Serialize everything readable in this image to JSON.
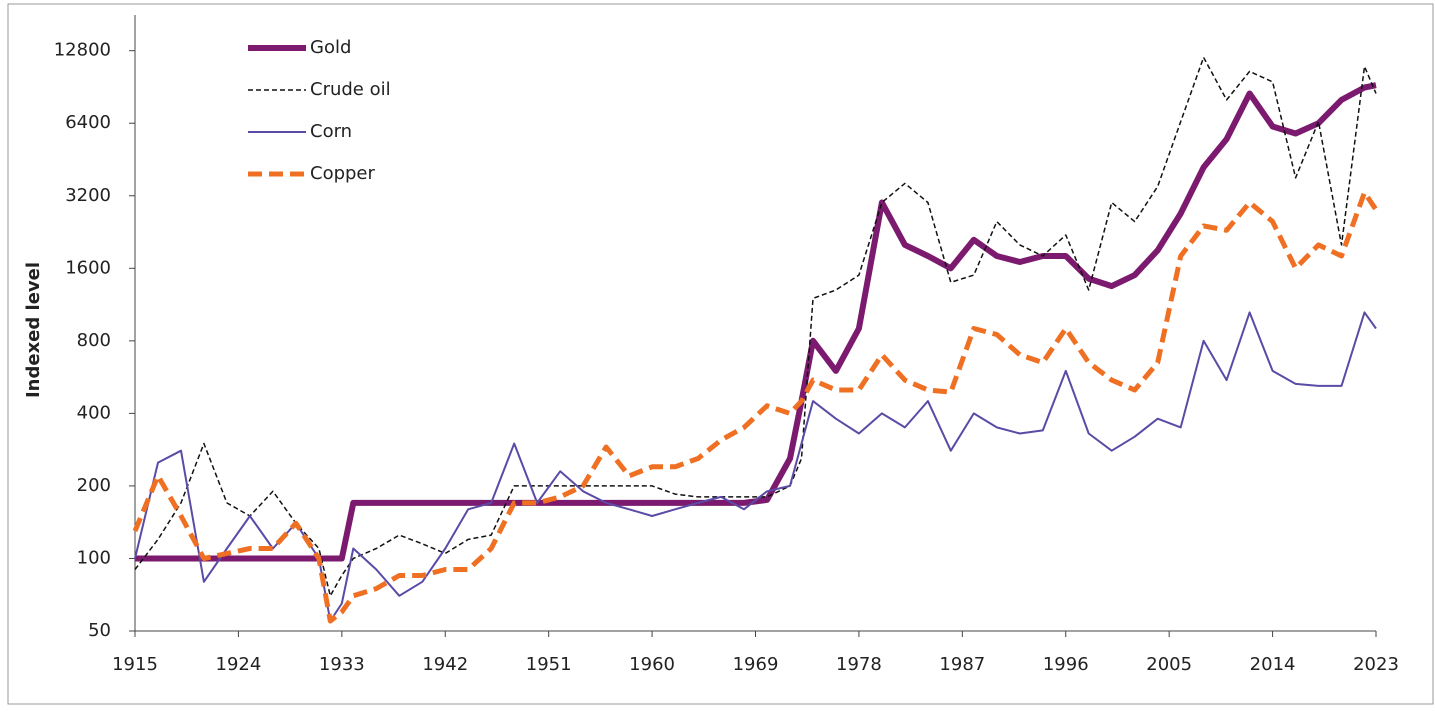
{
  "chart_data": {
    "type": "line",
    "y_label": "Indexed level",
    "log_scale": true,
    "xlim": [
      1915,
      2023
    ],
    "xticks": [
      1915,
      1924,
      1933,
      1942,
      1951,
      1960,
      1969,
      1978,
      1987,
      1996,
      2005,
      2014,
      2023
    ],
    "ylim": [
      50,
      18000
    ],
    "yticks": [
      50,
      100,
      200,
      400,
      800,
      1600,
      3200,
      6400,
      12800
    ],
    "legend": "top-left",
    "x": [
      1915,
      1917,
      1919,
      1921,
      1923,
      1925,
      1927,
      1929,
      1931,
      1932,
      1933,
      1934,
      1936,
      1938,
      1940,
      1942,
      1944,
      1946,
      1948,
      1950,
      1952,
      1954,
      1956,
      1958,
      1960,
      1962,
      1964,
      1966,
      1968,
      1970,
      1972,
      1973,
      1974,
      1976,
      1978,
      1980,
      1982,
      1984,
      1986,
      1988,
      1990,
      1992,
      1994,
      1996,
      1998,
      2000,
      2002,
      2004,
      2006,
      2008,
      2010,
      2012,
      2014,
      2016,
      2018,
      2020,
      2022,
      2023
    ],
    "series": [
      {
        "name": "Gold",
        "color": "#7b1a6e",
        "width": 6,
        "dash": false,
        "values": [
          100,
          100,
          100,
          100,
          100,
          100,
          100,
          100,
          100,
          100,
          100,
          170,
          170,
          170,
          170,
          170,
          170,
          170,
          170,
          170,
          170,
          170,
          170,
          170,
          170,
          170,
          170,
          170,
          170,
          175,
          260,
          450,
          800,
          600,
          900,
          3000,
          2000,
          1800,
          1600,
          2100,
          1800,
          1700,
          1800,
          1800,
          1450,
          1350,
          1500,
          1900,
          2700,
          4200,
          5500,
          8500,
          6200,
          5800,
          6400,
          8000,
          9000,
          9200
        ]
      },
      {
        "name": "Crude oil",
        "color": "#111111",
        "width": 1.5,
        "dash": true,
        "values": [
          90,
          120,
          170,
          300,
          170,
          150,
          190,
          140,
          110,
          70,
          85,
          100,
          110,
          125,
          115,
          105,
          120,
          125,
          200,
          200,
          200,
          200,
          200,
          200,
          200,
          185,
          180,
          180,
          180,
          180,
          200,
          260,
          1200,
          1300,
          1500,
          3000,
          3600,
          3000,
          1400,
          1500,
          2500,
          2000,
          1800,
          2200,
          1300,
          3000,
          2500,
          3500,
          6500,
          12000,
          8000,
          10500,
          9500,
          3800,
          6500,
          2000,
          11000,
          8500
        ]
      },
      {
        "name": "Corn",
        "color": "#5b4aa6",
        "width": 2,
        "dash": false,
        "values": [
          100,
          250,
          280,
          80,
          110,
          150,
          110,
          140,
          100,
          55,
          65,
          110,
          90,
          70,
          80,
          110,
          160,
          170,
          300,
          170,
          230,
          190,
          170,
          160,
          150,
          160,
          170,
          180,
          160,
          190,
          200,
          300,
          450,
          380,
          330,
          400,
          350,
          450,
          280,
          400,
          350,
          330,
          340,
          600,
          330,
          280,
          320,
          380,
          350,
          800,
          550,
          1050,
          600,
          530,
          520,
          520,
          1050,
          900
        ]
      },
      {
        "name": "Copper",
        "color": "#f07023",
        "width": 5,
        "dash": true,
        "values": [
          130,
          220,
          150,
          100,
          105,
          110,
          110,
          140,
          100,
          55,
          60,
          70,
          75,
          85,
          85,
          90,
          90,
          110,
          170,
          170,
          180,
          200,
          290,
          220,
          240,
          240,
          260,
          310,
          350,
          430,
          400,
          450,
          550,
          500,
          500,
          700,
          550,
          500,
          490,
          900,
          850,
          700,
          650,
          900,
          650,
          550,
          500,
          650,
          1800,
          2400,
          2300,
          3000,
          2500,
          1600,
          2000,
          1800,
          3300,
          2800
        ]
      }
    ]
  }
}
